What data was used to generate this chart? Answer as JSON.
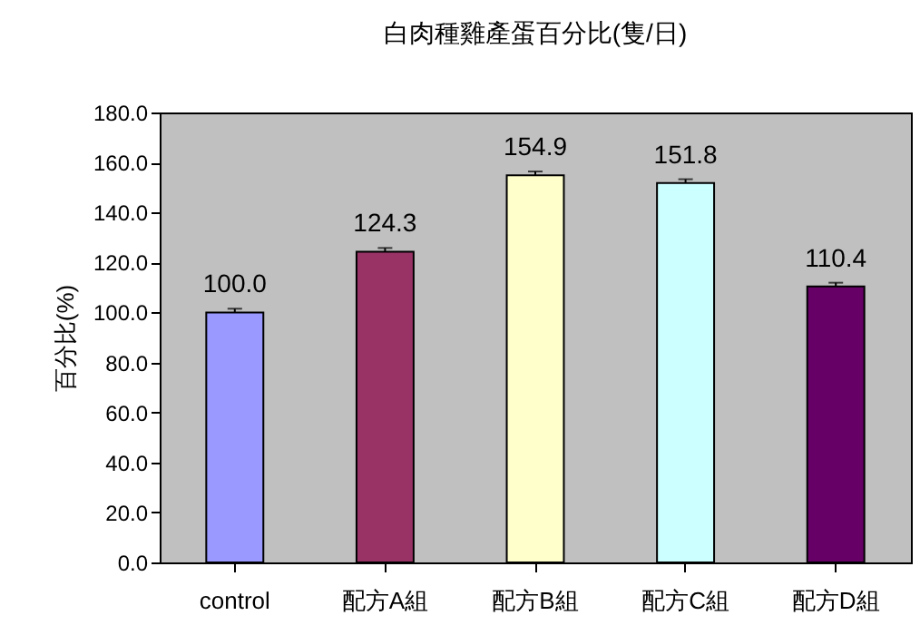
{
  "chart_data": {
    "type": "bar",
    "title": "白肉種雞產蛋百分比(隻/日)",
    "ylabel": "百分比(%)",
    "categories": [
      "control",
      "配方A組",
      "配方B組",
      "配方C組",
      "配方D組"
    ],
    "values": [
      100.0,
      124.3,
      154.9,
      151.8,
      110.4
    ],
    "colors": [
      "#9999ff",
      "#993366",
      "#ffffcc",
      "#ccffff",
      "#660066"
    ],
    "value_labels": [
      "100.0",
      "124.3",
      "154.9",
      "151.8",
      "110.4"
    ],
    "errors": [
      [
        100.0,
        101.5
      ],
      [
        124.3,
        125.8
      ],
      [
        154.9,
        156.4
      ],
      [
        151.8,
        153.3
      ],
      [
        110.4,
        111.9
      ]
    ],
    "ylim": [
      0,
      180
    ],
    "yticks": [
      {
        "value": 0,
        "label": "0.0"
      },
      {
        "value": 20,
        "label": "20.0"
      },
      {
        "value": 40,
        "label": "40.0"
      },
      {
        "value": 60,
        "label": "60.0"
      },
      {
        "value": 80,
        "label": "80.0"
      },
      {
        "value": 100,
        "label": "100.0"
      },
      {
        "value": 120,
        "label": "120.0"
      },
      {
        "value": 140,
        "label": "140.0"
      },
      {
        "value": 160,
        "label": "160.0"
      },
      {
        "value": 180,
        "label": "180.0"
      }
    ],
    "grid": false
  }
}
